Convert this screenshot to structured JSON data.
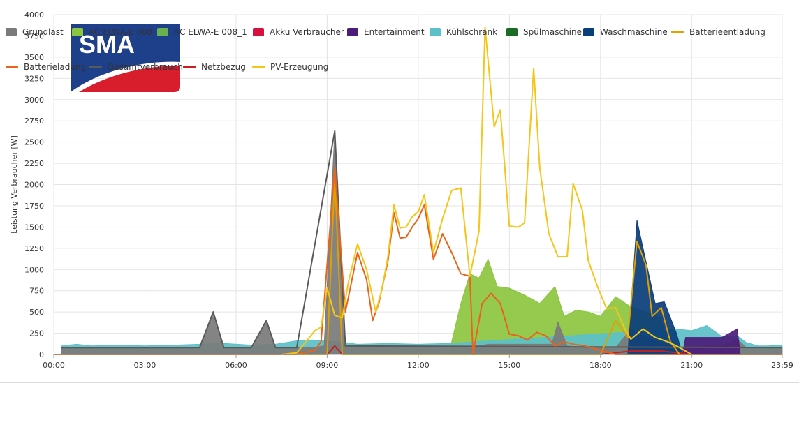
{
  "logo": {
    "text": "SMA",
    "blue": "#1e3f8a",
    "red": "#d81e2c"
  },
  "chart_data": {
    "type": "area",
    "ylabel": "Leistung Verbraucher [W]",
    "xlabel": "",
    "ylim": [
      0,
      4000
    ],
    "y_ticks": [
      0,
      250,
      500,
      750,
      1000,
      1250,
      1500,
      1750,
      2000,
      2250,
      2500,
      2750,
      3000,
      3250,
      3500,
      3750,
      4000
    ],
    "x_range_hours": [
      0,
      23.983
    ],
    "x_ticks": [
      {
        "hour": 0,
        "label": "00:00"
      },
      {
        "hour": 3,
        "label": "03:00"
      },
      {
        "hour": 6,
        "label": "06:00"
      },
      {
        "hour": 9,
        "label": "09:00"
      },
      {
        "hour": 12,
        "label": "12:00"
      },
      {
        "hour": 15,
        "label": "15:00"
      },
      {
        "hour": 18,
        "label": "18:00"
      },
      {
        "hour": 21,
        "label": "21:00"
      },
      {
        "hour": 23.983,
        "label": "23:59"
      }
    ],
    "grid": true,
    "legend_placement": "bottom",
    "series": [
      {
        "name": "Grundlast",
        "kind": "area",
        "color": "#7a7a7a",
        "points": [
          [
            0.25,
            80
          ],
          [
            0.75,
            80
          ],
          [
            1.25,
            80
          ],
          [
            2,
            80
          ],
          [
            3,
            80
          ],
          [
            4,
            80
          ],
          [
            4.8,
            80
          ],
          [
            5.25,
            500
          ],
          [
            5.6,
            80
          ],
          [
            6.5,
            80
          ],
          [
            7,
            400
          ],
          [
            7.3,
            80
          ],
          [
            8,
            80
          ],
          [
            8.5,
            80
          ],
          [
            8.9,
            100
          ],
          [
            9.25,
            2630
          ],
          [
            9.6,
            100
          ],
          [
            10,
            100
          ],
          [
            11,
            100
          ],
          [
            12,
            100
          ],
          [
            13,
            100
          ],
          [
            14,
            100
          ],
          [
            14.3,
            120
          ],
          [
            15,
            120
          ],
          [
            16,
            120
          ],
          [
            16.4,
            120
          ],
          [
            16.6,
            380
          ],
          [
            16.9,
            100
          ],
          [
            17.5,
            80
          ],
          [
            18,
            80
          ],
          [
            18.5,
            80
          ],
          [
            19,
            300
          ],
          [
            19.5,
            200
          ],
          [
            20.5,
            80
          ],
          [
            21.5,
            100
          ],
          [
            22,
            100
          ],
          [
            22.5,
            180
          ],
          [
            22.8,
            80
          ],
          [
            23.2,
            80
          ],
          [
            23.5,
            80
          ],
          [
            23.98,
            80
          ]
        ]
      },
      {
        "name": "AC ELWA-E 008",
        "kind": "area",
        "color": "#8cc63f",
        "points": [
          [
            13,
            0
          ],
          [
            13.4,
            600
          ],
          [
            13.7,
            950
          ],
          [
            14,
            900
          ],
          [
            14.3,
            1120
          ],
          [
            14.6,
            800
          ],
          [
            15,
            780
          ],
          [
            15.5,
            700
          ],
          [
            16,
            600
          ],
          [
            16.5,
            800
          ],
          [
            16.8,
            450
          ],
          [
            17.2,
            520
          ],
          [
            17.6,
            500
          ],
          [
            18,
            450
          ],
          [
            18.5,
            680
          ],
          [
            19,
            560
          ],
          [
            19.5,
            500
          ],
          [
            20,
            430
          ],
          [
            20.3,
            0
          ]
        ]
      },
      {
        "name": "AC ELWA-E 008_1",
        "kind": "area",
        "color": "#6ab04c",
        "points": [
          [
            13,
            0
          ],
          [
            14,
            0
          ],
          [
            15,
            0
          ],
          [
            16,
            0
          ],
          [
            17,
            0
          ]
        ]
      },
      {
        "name": "Akku Verbraucher",
        "kind": "area",
        "color": "#d6113c",
        "points": [
          [
            0,
            0
          ],
          [
            23.98,
            0
          ]
        ]
      },
      {
        "name": "Entertainment",
        "kind": "area",
        "color": "#4b1c7a",
        "points": [
          [
            20.7,
            0
          ],
          [
            20.8,
            200
          ],
          [
            21.5,
            200
          ],
          [
            22,
            200
          ],
          [
            22.5,
            300
          ],
          [
            22.6,
            0
          ]
        ]
      },
      {
        "name": "Kühlschrank",
        "kind": "area",
        "color": "#5bc0c8",
        "points": [
          [
            0.25,
            100
          ],
          [
            0.75,
            120
          ],
          [
            1.25,
            100
          ],
          [
            2,
            110
          ],
          [
            3,
            100
          ],
          [
            4,
            110
          ],
          [
            4.8,
            120
          ],
          [
            5.6,
            130
          ],
          [
            6.5,
            110
          ],
          [
            7.3,
            120
          ],
          [
            8,
            160
          ],
          [
            8.5,
            170
          ],
          [
            9.6,
            140
          ],
          [
            10,
            120
          ],
          [
            11,
            130
          ],
          [
            12,
            120
          ],
          [
            13,
            130
          ],
          [
            20.5,
            300
          ],
          [
            21,
            280
          ],
          [
            21.5,
            340
          ],
          [
            22,
            210
          ],
          [
            22.5,
            220
          ],
          [
            22.8,
            140
          ],
          [
            23.2,
            100
          ],
          [
            23.5,
            100
          ],
          [
            23.98,
            110
          ]
        ]
      },
      {
        "name": "Spülmaschine",
        "kind": "area",
        "color": "#1b6b27",
        "points": [
          [
            0,
            0
          ],
          [
            23.98,
            0
          ]
        ]
      },
      {
        "name": "Waschmaschine",
        "kind": "area",
        "color": "#0a3d7a",
        "points": [
          [
            18.9,
            0
          ],
          [
            19.2,
            1580
          ],
          [
            19.4,
            1250
          ],
          [
            19.8,
            600
          ],
          [
            20.1,
            620
          ],
          [
            20.5,
            250
          ],
          [
            20.7,
            0
          ]
        ]
      },
      {
        "name": "Batterieentladung",
        "kind": "line",
        "color": "#e0a000",
        "points": [
          [
            0,
            0
          ],
          [
            8,
            0
          ],
          [
            9,
            0
          ],
          [
            9.25,
            2100
          ],
          [
            9.5,
            0
          ],
          [
            13,
            0
          ],
          [
            18,
            0
          ],
          [
            18.5,
            400
          ],
          [
            18.9,
            200
          ],
          [
            19.2,
            1330
          ],
          [
            19.5,
            1050
          ],
          [
            19.7,
            450
          ],
          [
            20,
            550
          ],
          [
            20.3,
            150
          ],
          [
            20.6,
            0
          ],
          [
            23.98,
            0
          ]
        ]
      },
      {
        "name": "Batterieladung",
        "kind": "line",
        "color": "#e8641b",
        "points": [
          [
            0,
            0
          ],
          [
            8,
            0
          ],
          [
            8.6,
            50
          ],
          [
            8.8,
            150
          ],
          [
            9.25,
            2200
          ],
          [
            9.6,
            500
          ],
          [
            10,
            1200
          ],
          [
            10.3,
            880
          ],
          [
            10.5,
            400
          ],
          [
            10.7,
            600
          ],
          [
            11,
            1100
          ],
          [
            11.2,
            1670
          ],
          [
            11.4,
            1370
          ],
          [
            11.6,
            1380
          ],
          [
            11.8,
            1500
          ],
          [
            12,
            1600
          ],
          [
            12.2,
            1760
          ],
          [
            12.5,
            1120
          ],
          [
            12.8,
            1420
          ],
          [
            13.1,
            1200
          ],
          [
            13.4,
            950
          ],
          [
            13.7,
            920
          ],
          [
            13.8,
            0
          ],
          [
            14.1,
            600
          ],
          [
            14.4,
            720
          ],
          [
            14.7,
            600
          ],
          [
            15,
            240
          ],
          [
            15.3,
            220
          ],
          [
            15.6,
            170
          ],
          [
            15.9,
            260
          ],
          [
            16.2,
            220
          ],
          [
            16.5,
            100
          ],
          [
            16.8,
            150
          ],
          [
            17.1,
            120
          ],
          [
            17.5,
            100
          ],
          [
            18,
            50
          ],
          [
            18.5,
            0
          ],
          [
            23.98,
            0
          ]
        ]
      },
      {
        "name": "Gesamtverbrauch",
        "kind": "line",
        "color": "#5a5a5a",
        "points": [
          [
            0.25,
            80
          ],
          [
            0.75,
            80
          ],
          [
            1.25,
            80
          ],
          [
            2,
            80
          ],
          [
            3,
            80
          ],
          [
            4,
            80
          ],
          [
            4.8,
            80
          ],
          [
            5.25,
            500
          ],
          [
            5.6,
            80
          ],
          [
            6.5,
            80
          ],
          [
            7,
            400
          ],
          [
            7.3,
            80
          ],
          [
            8,
            80
          ],
          [
            9.25,
            2630
          ],
          [
            9.6,
            100
          ],
          [
            23.98,
            80
          ]
        ]
      },
      {
        "name": "Netzbezug",
        "kind": "line",
        "color": "#c81e1e",
        "points": [
          [
            0,
            0
          ],
          [
            9,
            0
          ],
          [
            9.25,
            100
          ],
          [
            9.5,
            0
          ],
          [
            18,
            0
          ],
          [
            19,
            40
          ],
          [
            20,
            40
          ],
          [
            21,
            0
          ],
          [
            23.98,
            0
          ]
        ]
      },
      {
        "name": "PV-Erzeugung",
        "kind": "line",
        "color": "#f5c518",
        "points": [
          [
            7.5,
            0
          ],
          [
            8,
            20
          ],
          [
            8.3,
            150
          ],
          [
            8.6,
            280
          ],
          [
            8.8,
            320
          ],
          [
            9,
            780
          ],
          [
            9.25,
            460
          ],
          [
            9.5,
            430
          ],
          [
            9.7,
            850
          ],
          [
            10,
            1300
          ],
          [
            10.3,
            1000
          ],
          [
            10.6,
            500
          ],
          [
            10.8,
            760
          ],
          [
            11,
            1150
          ],
          [
            11.2,
            1760
          ],
          [
            11.4,
            1490
          ],
          [
            11.6,
            1500
          ],
          [
            11.8,
            1620
          ],
          [
            12,
            1680
          ],
          [
            12.2,
            1880
          ],
          [
            12.5,
            1200
          ],
          [
            12.8,
            1600
          ],
          [
            13.1,
            1930
          ],
          [
            13.4,
            1960
          ],
          [
            13.7,
            920
          ],
          [
            14,
            1450
          ],
          [
            14.2,
            3850
          ],
          [
            14.5,
            2680
          ],
          [
            14.7,
            2880
          ],
          [
            15,
            1510
          ],
          [
            15.3,
            1500
          ],
          [
            15.5,
            1550
          ],
          [
            15.8,
            3370
          ],
          [
            16,
            2200
          ],
          [
            16.3,
            1420
          ],
          [
            16.6,
            1150
          ],
          [
            16.9,
            1150
          ],
          [
            17.1,
            2010
          ],
          [
            17.4,
            1700
          ],
          [
            17.6,
            1100
          ],
          [
            17.9,
            800
          ],
          [
            18.2,
            540
          ],
          [
            18.5,
            550
          ],
          [
            18.8,
            300
          ],
          [
            19,
            180
          ],
          [
            19.4,
            300
          ],
          [
            19.8,
            200
          ],
          [
            20.2,
            150
          ],
          [
            20.5,
            100
          ],
          [
            21,
            0
          ]
        ]
      }
    ]
  }
}
